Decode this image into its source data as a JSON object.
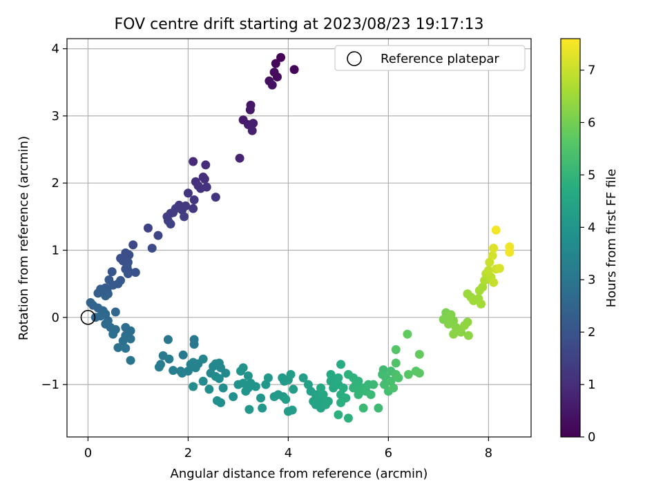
{
  "chart_data": {
    "type": "scatter",
    "title": "FOV centre drift starting at 2023/08/23 19:17:13",
    "xlabel": "Angular distance from reference (arcmin)",
    "ylabel": "Rotation from reference (arcmin)",
    "xlim": [
      -0.42,
      8.85
    ],
    "ylim": [
      -1.78,
      4.15
    ],
    "x_ticks": [
      0,
      2,
      4,
      6,
      8
    ],
    "y_ticks": [
      -1,
      0,
      1,
      2,
      3,
      4
    ],
    "x_tick_labels": [
      "0",
      "2",
      "4",
      "6",
      "8"
    ],
    "y_tick_labels": [
      "−1",
      "0",
      "1",
      "2",
      "3",
      "4"
    ],
    "grid": true,
    "legend": {
      "position": "top-right",
      "entries": [
        "Reference platepar"
      ]
    },
    "colorbar": {
      "label": "Hours from first FF file",
      "min": 0,
      "max": 7.6,
      "ticks": [
        0,
        1,
        2,
        3,
        4,
        5,
        6,
        7
      ],
      "tick_labels": [
        "0",
        "1",
        "2",
        "3",
        "4",
        "5",
        "6",
        "7"
      ],
      "colormap": "viridis"
    },
    "reference_point": {
      "name": "Reference platepar",
      "x": 0,
      "y": 0
    },
    "series": [
      {
        "color_by": "Hours from first FF file",
        "points": [
          [
            3.85,
            3.87,
            0.05
          ],
          [
            4.12,
            3.69,
            0.1
          ],
          [
            3.75,
            3.78,
            0.15
          ],
          [
            3.78,
            3.58,
            0.2
          ],
          [
            3.72,
            3.65,
            0.25
          ],
          [
            3.62,
            3.52,
            0.3
          ],
          [
            3.68,
            3.46,
            0.35
          ],
          [
            3.25,
            3.16,
            0.45
          ],
          [
            3.24,
            3.09,
            0.5
          ],
          [
            3.1,
            2.94,
            0.55
          ],
          [
            3.2,
            2.87,
            0.6
          ],
          [
            3.3,
            2.89,
            0.65
          ],
          [
            3.28,
            2.78,
            0.7
          ],
          [
            3.03,
            2.37,
            0.8
          ],
          [
            2.1,
            2.32,
            0.9
          ],
          [
            2.35,
            2.27,
            0.95
          ],
          [
            2.3,
            2.09,
            1.0
          ],
          [
            2.15,
            2.02,
            1.02
          ],
          [
            2.33,
            2.06,
            1.05
          ],
          [
            2.2,
            1.96,
            1.08
          ],
          [
            2.25,
            1.92,
            1.1
          ],
          [
            2.37,
            1.94,
            1.12
          ],
          [
            2.55,
            1.79,
            1.15
          ],
          [
            2.0,
            1.85,
            1.18
          ],
          [
            2.12,
            1.75,
            1.2
          ],
          [
            2.1,
            1.62,
            1.25
          ],
          [
            1.82,
            1.67,
            1.28
          ],
          [
            1.95,
            1.66,
            1.3
          ],
          [
            1.88,
            1.6,
            1.32
          ],
          [
            1.75,
            1.62,
            1.34
          ],
          [
            1.7,
            1.56,
            1.36
          ],
          [
            1.65,
            1.55,
            1.38
          ],
          [
            1.92,
            1.5,
            1.4
          ],
          [
            1.58,
            1.5,
            1.42
          ],
          [
            1.6,
            1.44,
            1.45
          ],
          [
            1.65,
            1.39,
            1.48
          ],
          [
            1.2,
            1.33,
            1.55
          ],
          [
            1.4,
            1.22,
            1.62
          ],
          [
            0.9,
            1.08,
            1.7
          ],
          [
            1.28,
            1.03,
            1.75
          ],
          [
            0.75,
            0.96,
            1.8
          ],
          [
            0.82,
            0.93,
            1.83
          ],
          [
            0.65,
            0.88,
            1.86
          ],
          [
            0.7,
            0.84,
            1.88
          ],
          [
            0.8,
            0.82,
            1.9
          ],
          [
            0.78,
            0.76,
            1.92
          ],
          [
            0.75,
            0.72,
            1.95
          ],
          [
            0.8,
            0.7,
            1.97
          ],
          [
            0.95,
            0.67,
            1.98
          ],
          [
            0.8,
            0.65,
            2.0
          ],
          [
            0.48,
            0.68,
            2.05
          ],
          [
            0.42,
            0.56,
            2.1
          ],
          [
            0.65,
            0.55,
            2.12
          ],
          [
            0.6,
            0.5,
            2.15
          ],
          [
            0.5,
            0.48,
            2.18
          ],
          [
            0.35,
            0.44,
            2.2
          ],
          [
            0.25,
            0.42,
            2.23
          ],
          [
            0.38,
            0.4,
            2.25
          ],
          [
            0.3,
            0.38,
            2.28
          ],
          [
            0.2,
            0.36,
            2.3
          ],
          [
            0.4,
            0.35,
            2.32
          ],
          [
            0.35,
            0.32,
            2.35
          ],
          [
            0.05,
            0.22,
            2.4
          ],
          [
            0.1,
            0.18,
            2.45
          ],
          [
            0.2,
            0.14,
            2.5
          ],
          [
            0.3,
            0.1,
            2.52
          ],
          [
            0.55,
            0.08,
            2.55
          ],
          [
            0.35,
            0.05,
            2.58
          ],
          [
            0.25,
            0.02,
            2.6
          ],
          [
            0.15,
            0.0,
            2.62
          ],
          [
            0.4,
            -0.05,
            2.65
          ],
          [
            0.35,
            -0.1,
            2.68
          ],
          [
            0.45,
            -0.15,
            2.7
          ],
          [
            0.55,
            -0.18,
            2.72
          ],
          [
            0.75,
            -0.15,
            2.74
          ],
          [
            0.85,
            -0.2,
            2.76
          ],
          [
            0.5,
            -0.25,
            2.78
          ],
          [
            0.75,
            -0.27,
            2.8
          ],
          [
            0.85,
            -0.32,
            2.82
          ],
          [
            0.7,
            -0.35,
            2.85
          ],
          [
            0.6,
            -0.45,
            2.88
          ],
          [
            0.75,
            -0.46,
            2.9
          ],
          [
            0.85,
            -0.64,
            2.95
          ],
          [
            1.6,
            -0.33,
            3.0
          ],
          [
            2.12,
            -0.33,
            3.05
          ],
          [
            2.12,
            -0.4,
            3.08
          ],
          [
            1.5,
            -0.57,
            3.12
          ],
          [
            1.62,
            -0.62,
            3.15
          ],
          [
            1.9,
            -0.56,
            3.17
          ],
          [
            1.45,
            -0.7,
            3.2
          ],
          [
            1.42,
            -0.74,
            3.22
          ],
          [
            1.7,
            -0.79,
            3.25
          ],
          [
            1.85,
            -0.8,
            3.28
          ],
          [
            2.0,
            -0.8,
            3.3
          ],
          [
            1.88,
            -0.83,
            3.32
          ],
          [
            2.05,
            -0.7,
            3.35
          ],
          [
            2.15,
            -0.75,
            3.37
          ],
          [
            2.2,
            -0.69,
            3.4
          ],
          [
            2.1,
            -0.67,
            3.42
          ],
          [
            2.3,
            -0.62,
            3.45
          ],
          [
            2.5,
            -0.73,
            3.47
          ],
          [
            2.55,
            -0.69,
            3.5
          ],
          [
            2.45,
            -0.83,
            3.52
          ],
          [
            2.62,
            -0.68,
            3.55
          ],
          [
            2.65,
            -0.75,
            3.57
          ],
          [
            2.75,
            -0.83,
            3.6
          ],
          [
            2.55,
            -0.88,
            3.62
          ],
          [
            2.3,
            -0.95,
            3.65
          ],
          [
            2.1,
            -1.03,
            3.67
          ],
          [
            2.42,
            -1.07,
            3.7
          ],
          [
            2.62,
            -0.91,
            3.72
          ],
          [
            2.7,
            -1.05,
            3.75
          ],
          [
            2.58,
            -1.24,
            3.77
          ],
          [
            2.65,
            -1.27,
            3.8
          ],
          [
            2.9,
            -1.18,
            3.82
          ],
          [
            3.0,
            -1.0,
            3.85
          ],
          [
            3.05,
            -0.8,
            3.87
          ],
          [
            3.1,
            -0.75,
            3.88
          ],
          [
            3.2,
            -0.87,
            3.9
          ],
          [
            3.1,
            -0.98,
            3.92
          ],
          [
            3.2,
            -1.05,
            3.94
          ],
          [
            3.25,
            -0.98,
            3.95
          ],
          [
            3.15,
            -1.1,
            3.97
          ],
          [
            3.35,
            -1.03,
            3.98
          ],
          [
            3.45,
            -1.2,
            4.0
          ],
          [
            3.22,
            -1.37,
            4.02
          ],
          [
            3.48,
            -1.35,
            4.03
          ],
          [
            3.55,
            -1.0,
            4.05
          ],
          [
            3.6,
            -0.9,
            4.07
          ],
          [
            3.72,
            -1.18,
            4.08
          ],
          [
            3.8,
            -1.15,
            4.1
          ],
          [
            3.9,
            -1.18,
            4.12
          ],
          [
            3.92,
            -0.95,
            4.14
          ],
          [
            3.88,
            -0.9,
            4.15
          ],
          [
            4.0,
            -0.93,
            4.17
          ],
          [
            4.05,
            -0.85,
            4.18
          ],
          [
            4.1,
            -1.07,
            4.2
          ],
          [
            4.0,
            -1.4,
            4.22
          ],
          [
            4.08,
            -1.38,
            4.23
          ],
          [
            3.95,
            -1.22,
            4.25
          ],
          [
            4.3,
            -0.9,
            4.3
          ],
          [
            4.4,
            -1.0,
            4.32
          ],
          [
            4.45,
            -1.1,
            4.35
          ],
          [
            4.55,
            -1.15,
            4.37
          ],
          [
            4.5,
            -1.25,
            4.4
          ],
          [
            4.6,
            -1.2,
            4.42
          ],
          [
            4.55,
            -1.3,
            4.45
          ],
          [
            4.65,
            -1.35,
            4.47
          ],
          [
            4.7,
            -1.28,
            4.5
          ],
          [
            4.75,
            -1.3,
            4.52
          ],
          [
            4.8,
            -1.25,
            4.54
          ],
          [
            4.7,
            -1.15,
            4.56
          ],
          [
            4.65,
            -1.05,
            4.58
          ],
          [
            4.85,
            -0.95,
            4.6
          ],
          [
            4.9,
            -1.05,
            4.62
          ],
          [
            4.85,
            -0.85,
            4.65
          ],
          [
            5.0,
            -0.9,
            4.67
          ],
          [
            5.05,
            -0.7,
            4.7
          ],
          [
            5.0,
            -1.0,
            4.72
          ],
          [
            5.1,
            -1.05,
            4.75
          ],
          [
            5.05,
            -1.15,
            4.77
          ],
          [
            5.15,
            -1.2,
            4.8
          ],
          [
            5.05,
            -1.27,
            4.82
          ],
          [
            5.0,
            -1.45,
            4.84
          ],
          [
            5.2,
            -1.5,
            4.86
          ],
          [
            5.2,
            -0.85,
            4.88
          ],
          [
            5.3,
            -0.9,
            4.9
          ],
          [
            5.35,
            -1.0,
            4.92
          ],
          [
            5.4,
            -0.95,
            4.94
          ],
          [
            5.3,
            -1.05,
            4.96
          ],
          [
            5.45,
            -1.1,
            4.98
          ],
          [
            5.4,
            -1.15,
            5.0
          ],
          [
            5.5,
            -1.05,
            5.02
          ],
          [
            5.55,
            -1.1,
            5.05
          ],
          [
            5.6,
            -1.0,
            5.07
          ],
          [
            5.5,
            -1.35,
            5.1
          ],
          [
            5.65,
            -1.15,
            5.12
          ],
          [
            5.7,
            -1.0,
            5.15
          ],
          [
            5.8,
            -1.35,
            5.18
          ],
          [
            5.9,
            -0.78,
            5.2
          ],
          [
            5.88,
            -0.85,
            5.22
          ],
          [
            5.95,
            -0.9,
            5.25
          ],
          [
            6.05,
            -0.8,
            5.28
          ],
          [
            5.92,
            -1.0,
            5.3
          ],
          [
            6.0,
            -1.1,
            5.32
          ],
          [
            6.05,
            -0.95,
            5.35
          ],
          [
            6.15,
            -0.85,
            5.4
          ],
          [
            6.1,
            -1.05,
            5.42
          ],
          [
            6.2,
            -0.9,
            5.45
          ],
          [
            6.15,
            -0.68,
            5.5
          ],
          [
            6.15,
            -0.48,
            5.55
          ],
          [
            6.4,
            -0.85,
            5.6
          ],
          [
            6.55,
            -0.8,
            5.65
          ],
          [
            6.62,
            -0.83,
            5.68
          ],
          [
            6.38,
            -0.25,
            5.75
          ],
          [
            6.62,
            -0.55,
            5.8
          ],
          [
            7.15,
            0.07,
            6.05
          ],
          [
            7.2,
            0.0,
            6.1
          ],
          [
            7.1,
            -0.03,
            6.12
          ],
          [
            7.25,
            0.04,
            6.15
          ],
          [
            7.3,
            -0.05,
            6.18
          ],
          [
            7.2,
            -0.1,
            6.2
          ],
          [
            7.35,
            -0.15,
            6.22
          ],
          [
            7.4,
            -0.2,
            6.24
          ],
          [
            7.3,
            -0.25,
            6.26
          ],
          [
            7.45,
            -0.22,
            6.28
          ],
          [
            7.6,
            -0.27,
            6.3
          ],
          [
            7.58,
            -0.07,
            6.32
          ],
          [
            7.52,
            -0.12,
            6.35
          ],
          [
            7.65,
            0.3,
            6.45
          ],
          [
            7.58,
            0.35,
            6.48
          ],
          [
            7.7,
            0.25,
            6.5
          ],
          [
            7.8,
            0.28,
            6.52
          ],
          [
            7.85,
            0.2,
            6.55
          ],
          [
            7.82,
            0.4,
            6.58
          ],
          [
            7.88,
            0.45,
            6.6
          ],
          [
            7.92,
            0.55,
            6.7
          ],
          [
            7.98,
            0.58,
            6.75
          ],
          [
            7.95,
            0.65,
            6.8
          ],
          [
            8.05,
            0.6,
            6.85
          ],
          [
            8.0,
            0.7,
            6.9
          ],
          [
            8.1,
            0.52,
            6.95
          ],
          [
            8.02,
            0.82,
            7.0
          ],
          [
            8.15,
            0.72,
            7.05
          ],
          [
            8.08,
            0.92,
            7.1
          ],
          [
            8.22,
            0.73,
            7.15
          ],
          [
            8.1,
            1.03,
            7.2
          ],
          [
            8.15,
            1.3,
            7.5
          ],
          [
            8.42,
            1.05,
            7.4
          ],
          [
            8.42,
            0.97,
            7.45
          ]
        ]
      }
    ]
  }
}
